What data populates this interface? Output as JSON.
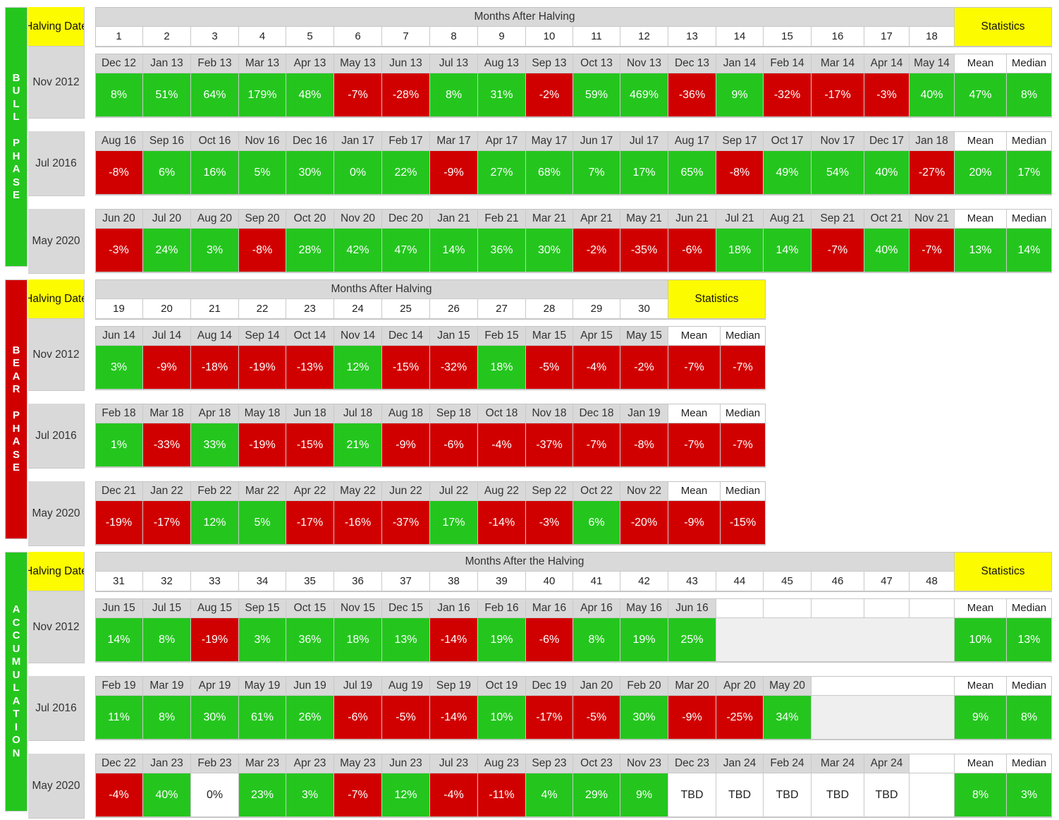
{
  "colors": {
    "green": "#24c61e",
    "red": "#d10000",
    "yellow": "#fdfb00",
    "header_gray": "#d9d9d9",
    "blank_gray": "#efefef",
    "bull_bar": "#24c61e",
    "bear_bar": "#d10000",
    "accum_bar": "#24c61e"
  },
  "halving_date_label": "Halving Date",
  "statistics_label": "Statistics",
  "mean_label": "Mean",
  "median_label": "Median",
  "chart_data": [
    {
      "type": "table",
      "title": "Bull Phase",
      "phase_label": "BULL PHASE",
      "header": "Months After Halving",
      "month_numbers": [
        "1",
        "2",
        "3",
        "4",
        "5",
        "6",
        "7",
        "8",
        "9",
        "10",
        "11",
        "12",
        "13",
        "14",
        "15",
        "16",
        "17",
        "18"
      ],
      "rows": [
        {
          "halving": "Nov 2012",
          "months": [
            "Dec 12",
            "Jan 13",
            "Feb 13",
            "Mar 13",
            "Apr 13",
            "May 13",
            "Jun 13",
            "Jul 13",
            "Aug 13",
            "Sep 13",
            "Oct 13",
            "Nov 13",
            "Dec 13",
            "Jan 14",
            "Feb 14",
            "Mar 14",
            "Apr 14",
            "May 14"
          ],
          "values": [
            "8%",
            "51%",
            "64%",
            "179%",
            "48%",
            "-7%",
            "-28%",
            "8%",
            "31%",
            "-2%",
            "59%",
            "469%",
            "-36%",
            "9%",
            "-32%",
            "-17%",
            "-3%",
            "40%"
          ],
          "mean": "47%",
          "median": "8%"
        },
        {
          "halving": "Jul 2016",
          "months": [
            "Aug 16",
            "Sep 16",
            "Oct 16",
            "Nov 16",
            "Dec 16",
            "Jan 17",
            "Feb 17",
            "Mar 17",
            "Apr 17",
            "May 17",
            "Jun 17",
            "Jul 17",
            "Aug 17",
            "Sep 17",
            "Oct 17",
            "Nov 17",
            "Dec 17",
            "Jan 18"
          ],
          "values": [
            "-8%",
            "6%",
            "16%",
            "5%",
            "30%",
            "0%",
            "22%",
            "-9%",
            "27%",
            "68%",
            "7%",
            "17%",
            "65%",
            "-8%",
            "49%",
            "54%",
            "40%",
            "-27%"
          ],
          "mean": "20%",
          "median": "17%"
        },
        {
          "halving": "May 2020",
          "months": [
            "Jun 20",
            "Jul 20",
            "Aug 20",
            "Sep 20",
            "Oct 20",
            "Nov 20",
            "Dec 20",
            "Jan 21",
            "Feb 21",
            "Mar 21",
            "Apr 21",
            "May 21",
            "Jun 21",
            "Jul 21",
            "Aug 21",
            "Sep 21",
            "Oct 21",
            "Nov 21"
          ],
          "values": [
            "-3%",
            "24%",
            "3%",
            "-8%",
            "28%",
            "42%",
            "47%",
            "14%",
            "36%",
            "30%",
            "-2%",
            "-35%",
            "-6%",
            "18%",
            "14%",
            "-7%",
            "40%",
            "-7%"
          ],
          "mean": "13%",
          "median": "14%"
        }
      ]
    },
    {
      "type": "table",
      "title": "Bear Phase",
      "phase_label": "BEAR PHASE",
      "header": "Months After Halving",
      "month_numbers": [
        "19",
        "20",
        "21",
        "22",
        "23",
        "24",
        "25",
        "26",
        "27",
        "28",
        "29",
        "30"
      ],
      "rows": [
        {
          "halving": "Nov 2012",
          "months": [
            "Jun 14",
            "Jul 14",
            "Aug 14",
            "Sep 14",
            "Oct 14",
            "Nov 14",
            "Dec 14",
            "Jan 15",
            "Feb 15",
            "Mar 15",
            "Apr 15",
            "May 15"
          ],
          "values": [
            "3%",
            "-9%",
            "-18%",
            "-19%",
            "-13%",
            "12%",
            "-15%",
            "-32%",
            "18%",
            "-5%",
            "-4%",
            "-2%"
          ],
          "mean": "-7%",
          "median": "-7%"
        },
        {
          "halving": "Jul 2016",
          "months": [
            "Feb 18",
            "Mar 18",
            "Apr 18",
            "May 18",
            "Jun 18",
            "Jul 18",
            "Aug 18",
            "Sep 18",
            "Oct 18",
            "Nov 18",
            "Dec 18",
            "Jan 19"
          ],
          "values": [
            "1%",
            "-33%",
            "33%",
            "-19%",
            "-15%",
            "21%",
            "-9%",
            "-6%",
            "-4%",
            "-37%",
            "-7%",
            "-8%"
          ],
          "mean": "-7%",
          "median": "-7%"
        },
        {
          "halving": "May 2020",
          "months": [
            "Dec 21",
            "Jan 22",
            "Feb 22",
            "Mar 22",
            "Apr 22",
            "May 22",
            "Jun 22",
            "Jul 22",
            "Aug 22",
            "Sep 22",
            "Oct 22",
            "Nov 22"
          ],
          "values": [
            "-19%",
            "-17%",
            "12%",
            "5%",
            "-17%",
            "-16%",
            "-37%",
            "17%",
            "-14%",
            "-3%",
            "6%",
            "-20%"
          ],
          "mean": "-9%",
          "median": "-15%"
        }
      ]
    },
    {
      "type": "table",
      "title": "Accumulation Phase",
      "phase_label": "ACCUMULATION",
      "header": "Months After the Halving",
      "month_numbers": [
        "31",
        "32",
        "33",
        "34",
        "35",
        "36",
        "37",
        "38",
        "39",
        "40",
        "41",
        "42",
        "43",
        "44",
        "45",
        "46",
        "47",
        "48"
      ],
      "rows": [
        {
          "halving": "Nov 2012",
          "months": [
            "Jun 15",
            "Jul 15",
            "Aug 15",
            "Sep 15",
            "Oct 15",
            "Nov 15",
            "Dec 15",
            "Jan 16",
            "Feb 16",
            "Mar 16",
            "Apr 16",
            "May 16",
            "Jun 16",
            "",
            "",
            "",
            "",
            ""
          ],
          "values": [
            "14%",
            "8%",
            "-19%",
            "3%",
            "36%",
            "18%",
            "13%",
            "-14%",
            "19%",
            "-6%",
            "8%",
            "19%",
            "25%",
            "",
            "",
            "",
            "",
            ""
          ],
          "mean": "10%",
          "median": "13%"
        },
        {
          "halving": "Jul 2016",
          "months": [
            "Feb 19",
            "Mar 19",
            "Apr 19",
            "May 19",
            "Jun 19",
            "Jul 19",
            "Aug 19",
            "Sep 19",
            "Oct 19",
            "Dec 19",
            "Jan 20",
            "Feb 20",
            "Mar 20",
            "Apr 20",
            "May 20",
            "",
            "",
            ""
          ],
          "values": [
            "11%",
            "8%",
            "30%",
            "61%",
            "26%",
            "-6%",
            "-5%",
            "-14%",
            "10%",
            "-17%",
            "-5%",
            "30%",
            "-9%",
            "-25%",
            "34%",
            "",
            "",
            ""
          ],
          "mean": "9%",
          "median": "8%"
        },
        {
          "halving": "May 2020",
          "months": [
            "Dec 22",
            "Jan 23",
            "Feb 23",
            "Mar 23",
            "Apr 23",
            "May 23",
            "Jun 23",
            "Jul 23",
            "Aug 23",
            "Sep 23",
            "Oct 23",
            "Nov 23",
            "Dec 23",
            "Jan 24",
            "Feb 24",
            "Mar 24",
            "Apr 24",
            ""
          ],
          "values": [
            "-4%",
            "40%",
            "0%",
            "23%",
            "3%",
            "-7%",
            "12%",
            "-4%",
            "-11%",
            "4%",
            "29%",
            "9%",
            "TBD",
            "TBD",
            "TBD",
            "TBD",
            "TBD",
            ""
          ],
          "mean": "8%",
          "median": "3%"
        }
      ]
    }
  ]
}
